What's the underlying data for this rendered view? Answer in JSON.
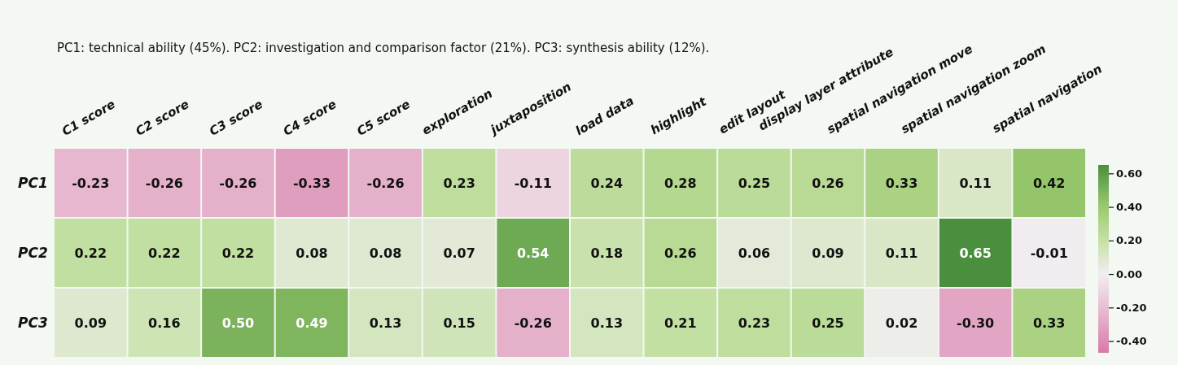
{
  "chart_data": {
    "type": "heatmap",
    "title": "PC1: technical ability (45%). PC2: investigation and comparison factor (21%). PC3: synthesis ability (12%).",
    "categories": [
      "C1 score",
      "C2 score",
      "C3 score",
      "C4 score",
      "C5 score",
      "exploration",
      "juxtaposition",
      "load data",
      "highlight",
      "edit layout",
      "display layer attribute",
      "spatial navigation move",
      "spatial navigation zoom",
      "spatial navigation"
    ],
    "y_categories": [
      "PC1",
      "PC2",
      "PC3"
    ],
    "cells": [
      [
        -0.23,
        -0.26,
        -0.26,
        -0.33,
        -0.26,
        0.23,
        -0.11,
        0.24,
        0.28,
        0.25,
        0.26,
        0.33,
        0.11,
        0.42
      ],
      [
        0.22,
        0.22,
        0.22,
        0.08,
        0.08,
        0.07,
        0.54,
        0.18,
        0.26,
        0.06,
        0.09,
        0.11,
        0.65,
        -0.01
      ],
      [
        0.09,
        0.16,
        0.5,
        0.49,
        0.13,
        0.15,
        -0.26,
        0.13,
        0.21,
        0.23,
        0.25,
        0.02,
        -0.3,
        0.33
      ]
    ],
    "cell_labels": [
      [
        "-0.23",
        "-0.26",
        "-0.26",
        "-0.33",
        "-0.26",
        "0.23",
        "-0.11",
        "0.24",
        "0.28",
        "0.25",
        "0.26",
        "0.33",
        "0.11",
        "0.42"
      ],
      [
        "0.22",
        "0.22",
        "0.22",
        "0.08",
        "0.08",
        "0.07",
        "0.54",
        "0.18",
        "0.26",
        "0.06",
        "0.09",
        "0.11",
        "0.65",
        "-0.01"
      ],
      [
        "0.09",
        "0.16",
        "0.50",
        "0.49",
        "0.13",
        "0.15",
        "-0.26",
        "0.13",
        "0.21",
        "0.23",
        "0.25",
        "0.02",
        "-0.30",
        "0.33"
      ]
    ],
    "data_labels": true,
    "clim": [
      -0.47,
      0.65
    ],
    "cticks": [
      {
        "value": 0.6,
        "label": "0.60"
      },
      {
        "value": 0.4,
        "label": "0.40"
      },
      {
        "value": 0.2,
        "label": "0.20"
      },
      {
        "value": 0,
        "label": "0.00"
      },
      {
        "value": -0.2,
        "label": "-0.20"
      },
      {
        "value": -0.4,
        "label": "-0.40"
      }
    ]
  }
}
